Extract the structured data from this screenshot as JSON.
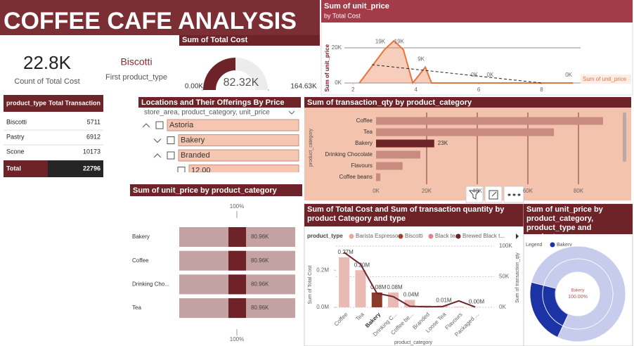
{
  "header": {
    "title": "COFFEE CAFE ANALYSIS"
  },
  "cards": [
    {
      "value": {
        "value": 22800,
        "label": "22.8K"
      },
      "label": "Count of Total Cost"
    },
    {
      "value": "Biscotti",
      "label": "First product_type"
    }
  ],
  "table": {
    "columns": [
      "product_type",
      "Total Transaction"
    ],
    "rows": [
      [
        "Biscotti",
        5711
      ],
      [
        "Pastry",
        6912
      ],
      [
        "Scone",
        10173
      ]
    ],
    "total": [
      "Total",
      22796
    ]
  },
  "slicer": {
    "title": "Locations and Their Offerings By Price",
    "subtitle": "store_area, product_category, unit_price",
    "items": [
      "Astoria",
      "Bakery",
      "Branded",
      "12.00"
    ]
  },
  "chart_data": [
    {
      "type": "gauge",
      "title": "Sum of Total Cost",
      "value": 82320,
      "value_label": "82.32K",
      "ylim": [
        0,
        164630
      ],
      "yticks": [
        {
          "value": 0,
          "label": "0.00K"
        },
        {
          "value": 164630,
          "label": "164.63K"
        }
      ],
      "color": "#6e2329",
      "track_color": "#ececec"
    },
    {
      "type": "line",
      "title": "Sum of unit_price",
      "subtitle": "by Total Cost",
      "y_label": "Sum of unit_price",
      "x": [
        2.2,
        3.0,
        3.3,
        3.6,
        3.9,
        4.3,
        4.5,
        6.0,
        6.5,
        9.0
      ],
      "series": [
        {
          "name": "Sum of unit_price",
          "color": "#e8743b",
          "values": [
            0,
            19000,
            24000,
            19000,
            0,
            9000,
            0,
            0,
            0,
            0
          ],
          "value_labels": [
            null,
            "19K",
            null,
            "19K",
            null,
            "9K",
            null,
            "0K",
            "0K",
            "0K"
          ]
        }
      ],
      "trend": {
        "x": [
          2.6,
          8
        ],
        "values": [
          10400,
          0
        ]
      },
      "xlim": [
        1.5,
        9.4
      ],
      "ylim": [
        0,
        25000
      ],
      "xticks": [
        2,
        4,
        6,
        8
      ],
      "yticks": [
        {
          "value": 0,
          "label": "0K"
        },
        {
          "value": 20000,
          "label": "20K"
        }
      ],
      "grid": true
    },
    {
      "type": "hbar",
      "title": "Sum of transaction_qty by product_category",
      "y_label": "product_category",
      "categories": [
        "Coffee",
        "Tea",
        "Bakery",
        "Drinking Chocolate",
        "Flavours",
        "Coffee beans"
      ],
      "values": [
        89700,
        70300,
        23000,
        17500,
        10500,
        1700
      ],
      "value_labels": [
        null,
        null,
        "23K",
        null,
        null,
        null
      ],
      "colors": [
        "#c98a80",
        "#c98a80",
        "#6e2329",
        "#c98a80",
        "#c98a80",
        "#c98a80"
      ],
      "xlim": [
        0,
        90000
      ],
      "xticks": [
        {
          "value": 0,
          "label": "0K"
        },
        {
          "value": 20000,
          "label": "20K"
        },
        {
          "value": 40000,
          "label": "40K"
        },
        {
          "value": 60000,
          "label": "60K"
        },
        {
          "value": 80000,
          "label": "80K"
        }
      ],
      "grid": true
    },
    {
      "type": "bar100",
      "title": "Sum of unit_price by product_category",
      "categories": [
        "Bakery",
        "Coffee",
        "Drinking Cho...",
        "Tea"
      ],
      "values": [
        80960,
        80960,
        80960,
        80960
      ],
      "value_labels": [
        "80.96K",
        "80.96K",
        "80.96K",
        "80.96K"
      ],
      "xticks": [
        {
          "value": 100,
          "label": "100%"
        }
      ],
      "color": "#c4a2a4"
    },
    {
      "type": "combo",
      "title": "Sum of Total Cost and Sum of transaction quantity by product Category and type",
      "legend": {
        "title": "product_type",
        "items": [
          {
            "name": "Barista Espresso",
            "color": "#e8a79d"
          },
          {
            "name": "Biscotti",
            "color": "#a0422b"
          },
          {
            "name": "Black tea",
            "color": "#e3828a"
          },
          {
            "name": "Brewed Black t...",
            "color": "#6e2329"
          }
        ]
      },
      "x_label": "product_category",
      "y_label": "Sum of Total Cost",
      "y2_label": "Sum of transaction_qty",
      "categories": [
        "Coffee",
        "Tea",
        "Bakery",
        "Drinking C...",
        "Coffee be...",
        "Branded",
        "Loose Tea",
        "Flavours",
        "Packaged ..."
      ],
      "series": [
        {
          "name": "Sum of Total Cost",
          "color": "#e9b9b4",
          "values": [
            270000,
            200000,
            80000,
            80000,
            40000,
            10000,
            10000,
            3000,
            2000
          ],
          "value_labels": [
            "0.27M",
            "0.20M",
            "0.08M",
            "0.08M",
            "0.04M",
            null,
            "0.01M",
            null,
            "0.00M"
          ]
        },
        {
          "name": "Sum of transaction_qty",
          "color": "#6e2329",
          "axis": "y2",
          "values": [
            89700,
            70300,
            23000,
            17500,
            1700,
            800,
            1200,
            10500,
            500
          ]
        }
      ],
      "ylim": [
        0,
        330000
      ],
      "yticks": [
        {
          "value": 0,
          "label": "0.0M"
        },
        {
          "value": 200000,
          "label": "0.2M"
        }
      ],
      "y2lim": [
        0,
        100000
      ],
      "y2ticks": [
        {
          "value": 0,
          "label": "0K"
        },
        {
          "value": 50000,
          "label": "50K"
        },
        {
          "value": 100000,
          "label": "100K"
        }
      ]
    },
    {
      "type": "sunburst",
      "title": "Sum of unit_price by product_category, product_type and product_...",
      "legend_title": "Legend",
      "categories": [
        "Bakery",
        null
      ],
      "values": [
        22,
        78
      ],
      "colors": [
        "#1c33a6",
        "#c7cbec"
      ],
      "center_label": {
        "value": 100,
        "label": "100.00%"
      }
    }
  ]
}
